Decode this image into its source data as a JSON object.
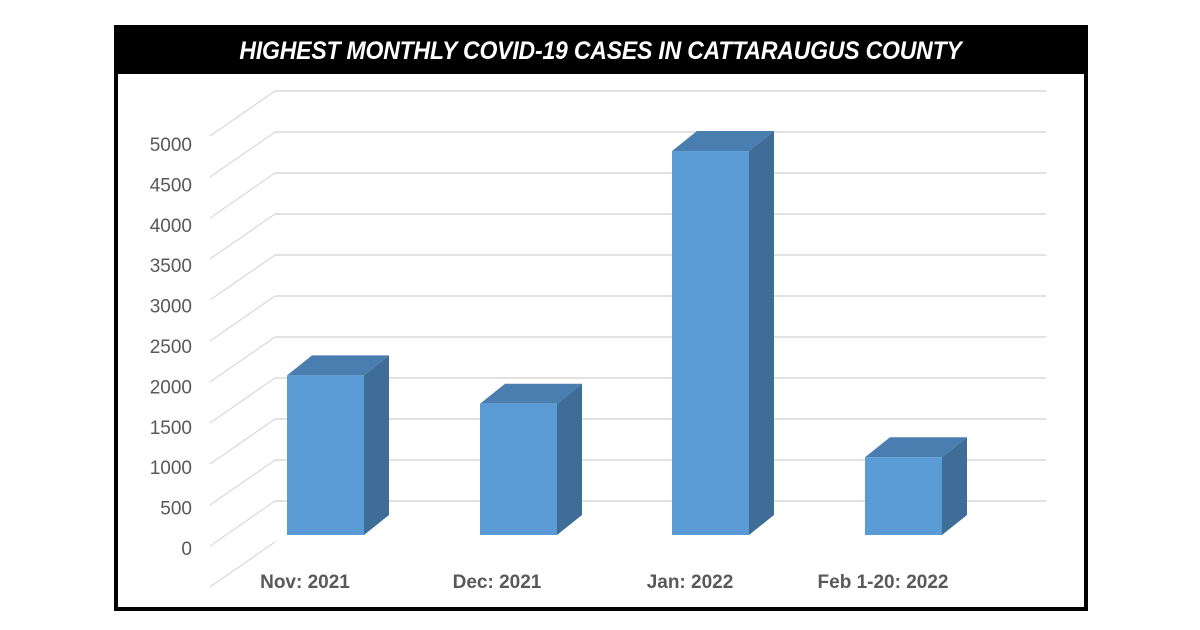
{
  "header": {
    "title": "HIGHEST MONTHLY COVID-19 CASES IN CATTARAUGUS COUNTY"
  },
  "colors": {
    "frame": "#000000",
    "title_bg": "#000000",
    "title_text": "#ffffff",
    "bar_front": "#5b9bd5",
    "bar_side": "#3e6d97",
    "bar_top": "#4a7eb0",
    "gridline": "#d9d9d9",
    "axis_text": "#595959"
  },
  "axis": {
    "y_ticks": [
      "0",
      "500",
      "1000",
      "1500",
      "2000",
      "2500",
      "3000",
      "3500",
      "4000",
      "4500",
      "5000"
    ],
    "x_labels": [
      "Nov: 2021",
      "Dec: 2021",
      "Jan: 2022",
      "Feb 1-20: 2022"
    ]
  },
  "chart_data": {
    "type": "bar",
    "title": "HIGHEST MONTHLY COVID-19 CASES IN CATTARAUGUS COUNTY",
    "categories": [
      "Nov: 2021",
      "Dec: 2021",
      "Jan: 2022",
      "Feb 1-20: 2022"
    ],
    "values": [
      1970,
      1620,
      4740,
      960
    ],
    "xlabel": "",
    "ylabel": "",
    "ylim": [
      0,
      5500
    ],
    "y_ticks": [
      0,
      500,
      1000,
      1500,
      2000,
      2500,
      3000,
      3500,
      4000,
      4500,
      5000
    ],
    "grid": true,
    "legend": "none",
    "style": "3d-column"
  }
}
